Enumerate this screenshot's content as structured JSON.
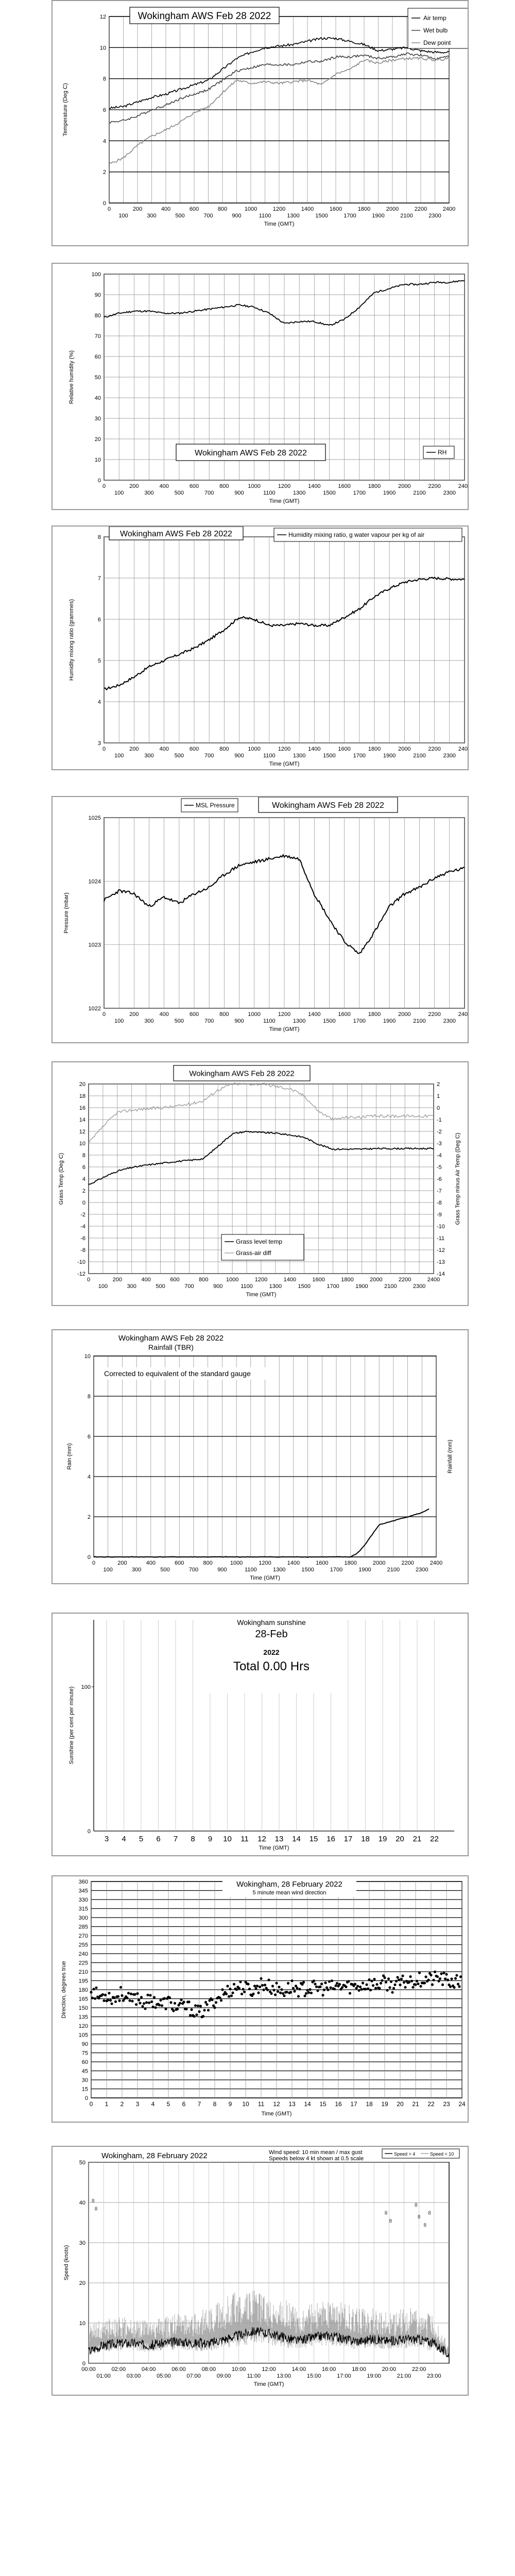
{
  "charts": {
    "temp": {
      "title": "Wokingham AWS Feb 28 2022",
      "xlabel": "Time (GMT)",
      "ylabel": "Temperature (Deg C)",
      "ylim": [
        0,
        12
      ],
      "yticks": [
        "0",
        "2",
        "4",
        "6",
        "8",
        "10",
        "12"
      ],
      "xticks_top": [
        "0",
        "200",
        "400",
        "600",
        "800",
        "1000",
        "1200",
        "1400",
        "1600",
        "1800",
        "2000",
        "2200",
        "2400"
      ],
      "xticks_bot": [
        "100",
        "300",
        "500",
        "700",
        "900",
        "1100",
        "1300",
        "1500",
        "1700",
        "1900",
        "2100",
        "2300"
      ],
      "legend": [
        "Air temp",
        "Wet bulb",
        "Dew point"
      ]
    },
    "rh": {
      "title": "Wokingham AWS Feb 28 2022",
      "xlabel": "Time (GMT)",
      "ylabel": "Relative humidity (%)",
      "ylim": [
        0,
        100
      ],
      "yticks": [
        "0",
        "10",
        "20",
        "30",
        "40",
        "50",
        "60",
        "70",
        "80",
        "90",
        "100"
      ],
      "xticks_top": [
        "0",
        "200",
        "400",
        "600",
        "800",
        "1000",
        "1200",
        "1400",
        "1600",
        "1800",
        "2000",
        "2200",
        "2400"
      ],
      "xticks_bot": [
        "100",
        "300",
        "500",
        "700",
        "900",
        "1100",
        "1300",
        "1500",
        "1700",
        "1900",
        "2100",
        "2300"
      ],
      "legend": [
        "RH"
      ]
    },
    "mix": {
      "title": "Wokingham AWS Feb 28 2022",
      "xlabel": "Time (GMT)",
      "ylabel": "Humidity mixing ratio (grammes)",
      "ylim": [
        3,
        8
      ],
      "yticks": [
        "3",
        "4",
        "5",
        "6",
        "7",
        "8"
      ],
      "xticks_top": [
        "0",
        "200",
        "400",
        "600",
        "800",
        "1000",
        "1200",
        "1400",
        "1600",
        "1800",
        "2000",
        "2200",
        "2400"
      ],
      "xticks_bot": [
        "100",
        "300",
        "500",
        "700",
        "900",
        "1100",
        "1300",
        "1500",
        "1700",
        "1900",
        "2100",
        "2300"
      ],
      "legend": [
        "Humidity mixing ratio, g water vapour per kg of air"
      ]
    },
    "press": {
      "title": "Wokingham AWS Feb 28 2022",
      "xlabel": "Time (GMT)",
      "ylabel": "Pressure (mbar)",
      "ylim": [
        1022,
        1025
      ],
      "yticks": [
        "1022",
        "1023",
        "1024",
        "1025"
      ],
      "xticks_top": [
        "0",
        "200",
        "400",
        "600",
        "800",
        "1000",
        "1200",
        "1400",
        "1600",
        "1800",
        "2000",
        "2200",
        "2400"
      ],
      "xticks_bot": [
        "100",
        "300",
        "500",
        "700",
        "900",
        "1100",
        "1300",
        "1500",
        "1700",
        "1900",
        "2100",
        "2300"
      ],
      "legend": [
        "MSL Pressure"
      ]
    },
    "grass": {
      "title": "Wokingham AWS Feb 28 2022",
      "xlabel": "Time (GMT)",
      "ylabel": "Grass Temp (Deg C)",
      "ylabel2": "Grass Temp minus Air Temp (Deg C)",
      "ylim": [
        -12,
        20
      ],
      "yticks": [
        "-12",
        "-10",
        "-8",
        "-6",
        "-4",
        "-2",
        "0",
        "2",
        "4",
        "6",
        "8",
        "10",
        "12",
        "14",
        "16",
        "18",
        "20"
      ],
      "y2ticks": [
        "-14",
        "-13",
        "-12",
        "-11",
        "-10",
        "-9",
        "-8",
        "-7",
        "-6",
        "-5",
        "-4",
        "-3",
        "-2",
        "-1",
        "0",
        "1",
        "2"
      ],
      "xticks_top": [
        "0",
        "200",
        "400",
        "600",
        "800",
        "1000",
        "1200",
        "1400",
        "1600",
        "1800",
        "2000",
        "2200",
        "2400"
      ],
      "xticks_bot": [
        "100",
        "300",
        "500",
        "700",
        "900",
        "1100",
        "1300",
        "1500",
        "1700",
        "1900",
        "2100",
        "2300"
      ],
      "legend": [
        "Grass level temp",
        "Grass-air diff"
      ]
    },
    "rain": {
      "title": "Wokingham AWS Feb 28 2022",
      "subtitle": "Rainfall (TBR)",
      "note": "Corrected to equivalent of the standard gauge",
      "xlabel": "Time (GMT)",
      "ylabel": "Rain (mm)",
      "ylabel2": "Rainfall (mm)",
      "ylim": [
        0,
        10
      ],
      "yticks": [
        "0",
        "2",
        "4",
        "6",
        "8",
        "10"
      ],
      "xticks_top": [
        "0",
        "200",
        "400",
        "600",
        "800",
        "1000",
        "1200",
        "1400",
        "1600",
        "1800",
        "2000",
        "2200",
        "2400"
      ],
      "xticks_bot": [
        "100",
        "300",
        "500",
        "700",
        "900",
        "1100",
        "1300",
        "1500",
        "1700",
        "1900",
        "2100",
        "2300"
      ]
    },
    "sun": {
      "title": "Wokingham sunshine",
      "date": "28-Feb",
      "year": "2022",
      "total": "Total 0.00 Hrs",
      "xlabel": "Time (GMT)",
      "ylabel": "Sunshine (per cent per minute)",
      "yticks": [
        "0",
        "100"
      ],
      "xticks": [
        "3",
        "4",
        "5",
        "6",
        "7",
        "8",
        "9",
        "10",
        "11",
        "12",
        "13",
        "14",
        "15",
        "16",
        "17",
        "18",
        "19",
        "20",
        "21",
        "22"
      ]
    },
    "wdir": {
      "title": "Wokingham,  28 February 2022",
      "subtitle": "5 minute mean wind direction",
      "xlabel": "Time (GMT)",
      "ylabel": "Direction, degrees true",
      "ylim": [
        0,
        360
      ],
      "yticks": [
        "0",
        "15",
        "30",
        "45",
        "60",
        "75",
        "90",
        "105",
        "120",
        "135",
        "150",
        "165",
        "180",
        "195",
        "210",
        "225",
        "240",
        "255",
        "270",
        "285",
        "300",
        "315",
        "330",
        "345",
        "360"
      ],
      "xticks": [
        "0",
        "1",
        "2",
        "3",
        "4",
        "5",
        "6",
        "7",
        "8",
        "9",
        "10",
        "11",
        "12",
        "13",
        "14",
        "15",
        "16",
        "17",
        "18",
        "19",
        "20",
        "21",
        "22",
        "23",
        "24"
      ]
    },
    "wspd": {
      "title": "Wokingham,  28 February 2022",
      "subtitle": "Wind speed: 10 min mean / max gust",
      "subtitle2": "Speeds below 4 kt shown at 0.5 scale",
      "xlabel": "Time (GMT)",
      "ylabel": "Speed (knots)",
      "ylim": [
        0,
        50
      ],
      "yticks": [
        "0",
        "10",
        "20",
        "30",
        "40",
        "50"
      ],
      "xticks_top": [
        "00:00",
        "02:00",
        "04:00",
        "06:00",
        "08:00",
        "10:00",
        "12:00",
        "14:00",
        "16:00",
        "18:00",
        "20:00",
        "22:00"
      ],
      "xticks_bot": [
        "01:00",
        "03:00",
        "05:00",
        "07:00",
        "09:00",
        "11:00",
        "13:00",
        "15:00",
        "17:00",
        "19:00",
        "21:00",
        "23:00"
      ],
      "legend": [
        "Speed > 4",
        "Speed < 10"
      ]
    }
  },
  "chart_data": [
    {
      "type": "line",
      "title": "Wokingham AWS Feb 28 2022",
      "xlabel": "Time (GMT)",
      "ylabel": "Temperature (Deg C)",
      "ylim": [
        0,
        12
      ],
      "x": [
        0,
        100,
        200,
        300,
        400,
        500,
        600,
        700,
        800,
        900,
        1000,
        1100,
        1200,
        1300,
        1400,
        1500,
        1600,
        1700,
        1800,
        1900,
        2000,
        2100,
        2200,
        2300,
        2400
      ],
      "series": [
        {
          "name": "Air temp",
          "values": [
            6.1,
            6.2,
            6.5,
            6.8,
            7.0,
            7.3,
            7.6,
            7.9,
            8.6,
            9.3,
            9.7,
            10.0,
            10.1,
            10.2,
            10.4,
            10.6,
            10.6,
            10.4,
            10.2,
            9.8,
            9.9,
            10.0,
            9.8,
            9.7,
            9.7
          ]
        },
        {
          "name": "Wet bulb",
          "values": [
            5.2,
            5.3,
            5.6,
            6.0,
            6.3,
            6.7,
            7.0,
            7.3,
            7.9,
            8.5,
            8.7,
            8.9,
            8.9,
            8.9,
            9.1,
            9.1,
            9.4,
            9.4,
            9.5,
            9.3,
            9.4,
            9.6,
            9.5,
            9.3,
            9.4
          ]
        },
        {
          "name": "Dew point",
          "values": [
            2.5,
            2.9,
            3.7,
            4.3,
            4.7,
            5.2,
            5.8,
            6.2,
            7.1,
            7.9,
            7.7,
            7.8,
            7.7,
            7.8,
            7.9,
            7.6,
            8.3,
            8.6,
            9.2,
            9.0,
            9.2,
            9.3,
            9.3,
            9.2,
            9.3
          ]
        }
      ]
    },
    {
      "type": "line",
      "title": "Wokingham AWS Feb 28 2022",
      "xlabel": "Time (GMT)",
      "ylabel": "Relative humidity (%)",
      "ylim": [
        0,
        100
      ],
      "x": [
        0,
        100,
        200,
        300,
        400,
        500,
        600,
        700,
        800,
        900,
        1000,
        1100,
        1200,
        1300,
        1400,
        1500,
        1600,
        1700,
        1800,
        1900,
        2000,
        2100,
        2200,
        2300,
        2400
      ],
      "series": [
        {
          "name": "RH",
          "values": [
            79,
            81,
            82,
            82,
            81,
            81,
            82,
            83,
            84,
            85,
            84,
            81,
            76,
            77,
            77,
            75,
            78,
            84,
            91,
            93,
            95,
            95,
            96,
            96,
            97
          ]
        }
      ]
    },
    {
      "type": "line",
      "title": "Wokingham AWS Feb 28 2022",
      "xlabel": "Time (GMT)",
      "ylabel": "Humidity mixing ratio (grammes)",
      "ylim": [
        3,
        8
      ],
      "x": [
        0,
        100,
        200,
        300,
        400,
        500,
        600,
        700,
        800,
        900,
        1000,
        1100,
        1200,
        1300,
        1400,
        1500,
        1600,
        1700,
        1800,
        1900,
        2000,
        2100,
        2200,
        2300,
        2400
      ],
      "series": [
        {
          "name": "Humidity mixing ratio, g water vapour per kg of air",
          "values": [
            4.3,
            4.4,
            4.6,
            4.85,
            5.0,
            5.15,
            5.3,
            5.5,
            5.75,
            6.05,
            6.0,
            5.85,
            5.85,
            5.9,
            5.85,
            5.85,
            6.05,
            6.25,
            6.55,
            6.75,
            6.9,
            6.97,
            7.0,
            6.98,
            6.97
          ]
        }
      ]
    },
    {
      "type": "line",
      "title": "Wokingham AWS Feb 28 2022",
      "xlabel": "Time (GMT)",
      "ylabel": "Pressure (mbar)",
      "ylim": [
        1022,
        1025
      ],
      "x": [
        0,
        100,
        200,
        300,
        400,
        500,
        600,
        700,
        800,
        900,
        1000,
        1100,
        1200,
        1300,
        1400,
        1500,
        1600,
        1700,
        1800,
        1900,
        2000,
        2100,
        2200,
        2300,
        2400
      ],
      "series": [
        {
          "name": "MSL Pressure",
          "values": [
            1023.7,
            1023.85,
            1023.8,
            1023.6,
            1023.75,
            1023.65,
            1023.8,
            1023.9,
            1024.1,
            1024.25,
            1024.3,
            1024.35,
            1024.4,
            1024.35,
            1023.8,
            1023.4,
            1023.05,
            1022.85,
            1023.2,
            1023.6,
            1023.8,
            1023.9,
            1024.05,
            1024.15,
            1024.2
          ]
        }
      ]
    },
    {
      "type": "line",
      "title": "Wokingham AWS Feb 28 2022",
      "xlabel": "Time (GMT)",
      "ylabel": "Grass Temp (Deg C)",
      "ylim": [
        -12,
        20
      ],
      "x": [
        0,
        100,
        200,
        300,
        400,
        500,
        600,
        700,
        800,
        900,
        1000,
        1100,
        1200,
        1300,
        1400,
        1500,
        1600,
        1700,
        1800,
        1900,
        2000,
        2100,
        2200,
        2300,
        2400
      ],
      "series": [
        {
          "name": "Grass level temp",
          "values": [
            3.0,
            4.2,
            5.3,
            5.9,
            6.3,
            6.6,
            6.9,
            7.1,
            7.4,
            9.5,
            11.6,
            12.0,
            11.8,
            11.7,
            11.4,
            11.0,
            9.8,
            9.0,
            9.0,
            9.0,
            9.1,
            9.1,
            9.1,
            9.1,
            9.1
          ]
        },
        {
          "name": "Grass-air diff",
          "values": [
            -3.0,
            -1.6,
            -0.4,
            -0.2,
            -0.1,
            0.0,
            0.1,
            0.3,
            0.6,
            1.5,
            2.0,
            2.0,
            2.0,
            1.8,
            1.6,
            1.0,
            -0.3,
            -1.0,
            -0.8,
            -0.8,
            -0.7,
            -0.7,
            -0.7,
            -0.7,
            -0.7
          ]
        }
      ]
    },
    {
      "type": "line",
      "title": "Wokingham AWS Feb 28 2022",
      "xlabel": "Time (GMT)",
      "ylabel": "Rain (mm)",
      "ylim": [
        0,
        10
      ],
      "x": [
        0,
        1800,
        1850,
        1900,
        1950,
        2000,
        2100,
        2200,
        2300,
        2350
      ],
      "series": [
        {
          "name": "Rainfall (TBR)",
          "values": [
            0,
            0,
            0.2,
            0.6,
            1.1,
            1.6,
            1.8,
            2.0,
            2.2,
            2.4
          ]
        }
      ]
    },
    {
      "type": "line",
      "title": "Wokingham sunshine",
      "xlabel": "Time (GMT)",
      "ylabel": "Sunshine (per cent per minute)",
      "x": [
        3,
        4,
        5,
        6,
        7,
        8,
        9,
        10,
        11,
        12,
        13,
        14,
        15,
        16,
        17,
        18,
        19,
        20,
        21,
        22
      ],
      "series": [
        {
          "name": "Sunshine",
          "values": [
            0,
            0,
            0,
            0,
            0,
            0,
            0,
            0,
            0,
            0,
            0,
            0,
            0,
            0,
            0,
            0,
            0,
            0,
            0,
            0
          ]
        }
      ]
    },
    {
      "type": "scatter",
      "title": "Wokingham,  28 February 2022",
      "xlabel": "Time (GMT)",
      "ylabel": "Direction, degrees true",
      "ylim": [
        0,
        360
      ],
      "x": [
        0,
        0.5,
        1,
        1.5,
        2,
        2.5,
        3,
        3.5,
        4,
        4.5,
        5,
        5.5,
        6,
        6.5,
        7,
        7.5,
        8,
        8.5,
        9,
        9.5,
        10,
        10.5,
        11,
        11.5,
        12,
        12.5,
        13,
        13.5,
        14,
        14.5,
        15,
        15.5,
        16,
        16.5,
        17,
        17.5,
        18,
        18.5,
        19,
        19.5,
        20,
        20.5,
        21,
        21.5,
        22,
        22.5,
        23,
        23.5,
        24
      ],
      "series": [
        {
          "name": "5 minute mean wind direction",
          "values": [
            180,
            168,
            172,
            165,
            175,
            160,
            168,
            158,
            163,
            155,
            160,
            150,
            152,
            148,
            140,
            150,
            162,
            172,
            180,
            185,
            182,
            178,
            190,
            185,
            180,
            178,
            185,
            180,
            182,
            183,
            182,
            183,
            185,
            186,
            185,
            187,
            190,
            188,
            192,
            187,
            190,
            195,
            196,
            198,
            197,
            200,
            195,
            192,
            192
          ]
        }
      ]
    },
    {
      "type": "line",
      "title": "Wokingham,  28 February 2022",
      "xlabel": "Time (GMT)",
      "ylabel": "Speed (knots)",
      "ylim": [
        0,
        50
      ],
      "x": [
        0,
        1,
        2,
        3,
        4,
        5,
        6,
        7,
        8,
        9,
        10,
        11,
        12,
        13,
        14,
        15,
        16,
        17,
        18,
        19,
        20,
        21,
        22,
        23,
        24
      ],
      "series": [
        {
          "name": "10 min mean",
          "values": [
            3.0,
            4.5,
            5.0,
            5.0,
            4.5,
            5.0,
            5.5,
            5.0,
            5.0,
            6.0,
            7.0,
            8.0,
            7.5,
            6.5,
            5.5,
            6.5,
            7.0,
            6.0,
            5.5,
            6.0,
            5.5,
            6.0,
            6.0,
            5.0,
            2.0
          ]
        },
        {
          "name": "Max gust",
          "values": [
            8,
            10,
            10,
            10,
            9,
            10,
            11,
            11,
            12,
            14,
            16,
            16,
            14,
            14,
            12,
            13,
            14,
            13,
            12,
            12,
            11,
            12,
            12,
            10,
            4
          ]
        }
      ]
    }
  ]
}
